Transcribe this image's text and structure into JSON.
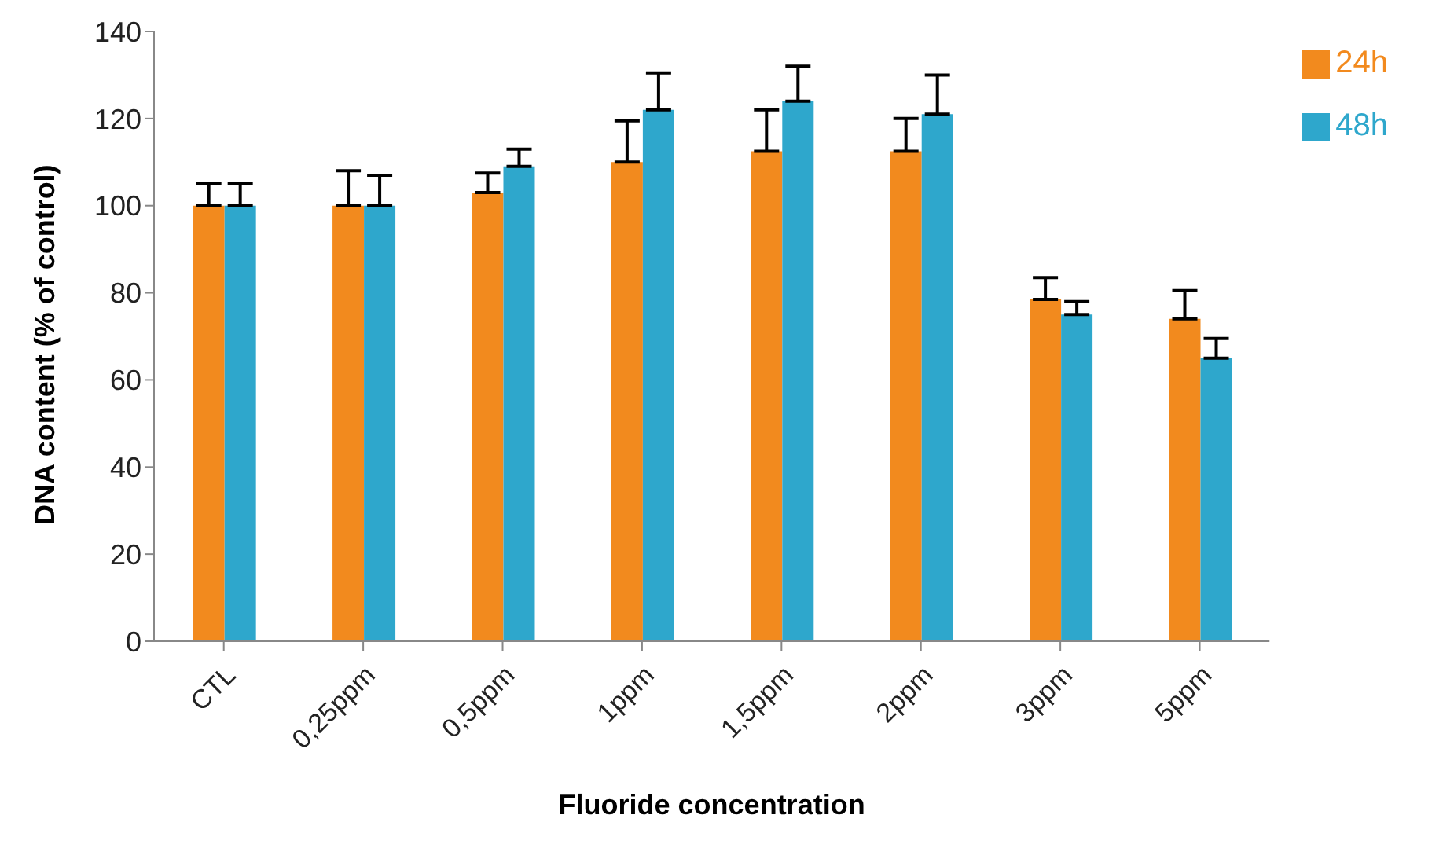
{
  "chart_data": {
    "type": "bar",
    "xlabel": "Fluoride concentration",
    "ylabel": "DNA content (% of control)",
    "categories": [
      "CTL",
      "0,25ppm",
      "0,5ppm",
      "1ppm",
      "1,5ppm",
      "2ppm",
      "3ppm",
      "5ppm"
    ],
    "series": [
      {
        "name": "24h",
        "color": "#f28a1e",
        "values": [
          100,
          100,
          103,
          110,
          112.5,
          112.5,
          78.5,
          74
        ],
        "errors": [
          [
            100,
            105
          ],
          [
            100,
            108
          ],
          [
            103,
            107.5
          ],
          [
            110,
            119.5
          ],
          [
            112.5,
            122
          ],
          [
            112.5,
            120
          ],
          [
            78.5,
            83.5
          ],
          [
            74,
            80.5
          ]
        ]
      },
      {
        "name": "48h",
        "color": "#2ea7cc",
        "values": [
          100,
          100,
          109,
          122,
          124,
          121,
          75,
          65
        ],
        "errors": [
          [
            100,
            105
          ],
          [
            100,
            107
          ],
          [
            109,
            113
          ],
          [
            122,
            130.5
          ],
          [
            124,
            132
          ],
          [
            121,
            130
          ],
          [
            75,
            78
          ],
          [
            65,
            69.5
          ]
        ]
      }
    ],
    "ylim": [
      0,
      140
    ],
    "yticks": [
      0,
      20,
      40,
      60,
      80,
      100,
      120,
      140
    ],
    "grid": false,
    "legend": "right"
  }
}
